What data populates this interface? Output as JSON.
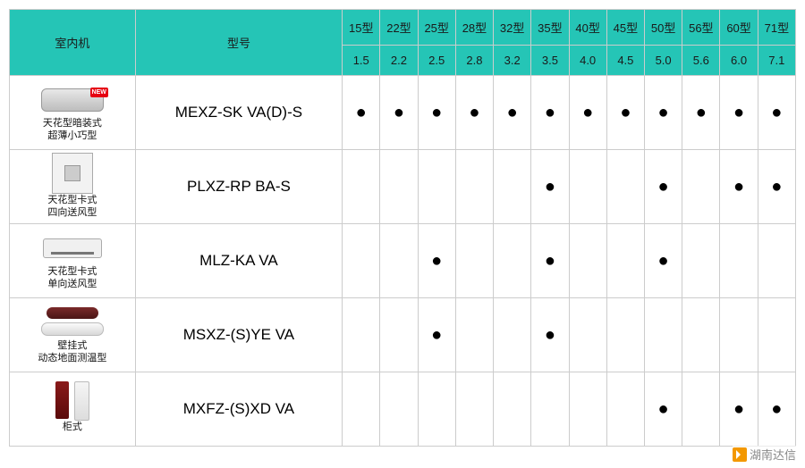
{
  "header": {
    "indoor_unit": "室内机",
    "model": "型号",
    "capacities": [
      {
        "type": "15型",
        "kw": "1.5"
      },
      {
        "type": "22型",
        "kw": "2.2"
      },
      {
        "type": "25型",
        "kw": "2.5"
      },
      {
        "type": "28型",
        "kw": "2.8"
      },
      {
        "type": "32型",
        "kw": "3.2"
      },
      {
        "type": "35型",
        "kw": "3.5"
      },
      {
        "type": "40型",
        "kw": "4.0"
      },
      {
        "type": "45型",
        "kw": "4.5"
      },
      {
        "type": "50型",
        "kw": "5.0"
      },
      {
        "type": "56型",
        "kw": "5.6"
      },
      {
        "type": "60型",
        "kw": "6.0"
      },
      {
        "type": "71型",
        "kw": "7.1"
      }
    ]
  },
  "rows": [
    {
      "icon_shape": "u-duct",
      "is_new": true,
      "desc_line1": "天花型暗装式",
      "desc_line2": "超薄小巧型",
      "model": "MEXZ-SK VA(D)-S",
      "marks": [
        true,
        true,
        true,
        true,
        true,
        true,
        true,
        true,
        true,
        true,
        true,
        true
      ]
    },
    {
      "icon_shape": "u-cassette4",
      "is_new": false,
      "desc_line1": "天花型卡式",
      "desc_line2": "四向送风型",
      "model": "PLXZ-RP BA-S",
      "marks": [
        false,
        false,
        false,
        false,
        false,
        true,
        false,
        false,
        true,
        false,
        true,
        true
      ]
    },
    {
      "icon_shape": "u-cassette1",
      "is_new": false,
      "desc_line1": "天花型卡式",
      "desc_line2": "单向送风型",
      "model": "MLZ-KA VA",
      "marks": [
        false,
        false,
        true,
        false,
        false,
        true,
        false,
        false,
        true,
        false,
        false,
        false
      ]
    },
    {
      "icon_shape": "u-wall",
      "is_new": false,
      "desc_line1": "壁挂式",
      "desc_line2": "动态地面测温型",
      "model": "MSXZ-(S)YE VA",
      "marks": [
        false,
        false,
        true,
        false,
        false,
        true,
        false,
        false,
        false,
        false,
        false,
        false
      ]
    },
    {
      "icon_shape": "u-floor",
      "is_new": false,
      "desc_line1": "柜式",
      "desc_line2": "",
      "model": "MXFZ-(S)XD VA",
      "marks": [
        false,
        false,
        false,
        false,
        false,
        false,
        false,
        false,
        true,
        false,
        true,
        true
      ]
    }
  ],
  "style": {
    "header_bg": "#25c5b6",
    "border_color": "#cccccc",
    "dot_char": "●",
    "new_label": "NEW"
  },
  "watermark": {
    "text": "湖南达信"
  }
}
